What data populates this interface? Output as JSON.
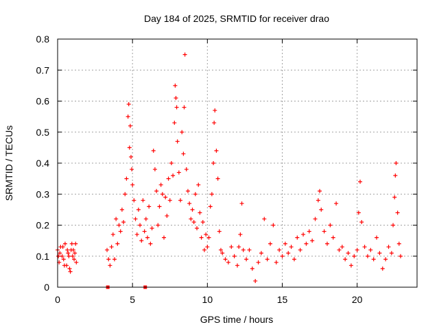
{
  "chart_data": {
    "type": "scatter",
    "title": "Day 184 of 2025, SRMTID for receiver drao",
    "xlabel": "GPS time / hours",
    "ylabel": "SRMTID / TECUs",
    "xlim": [
      0,
      24
    ],
    "ylim": [
      0,
      0.8
    ],
    "xticks": [
      "0",
      "5",
      "10",
      "15",
      "20"
    ],
    "yticks": [
      "0",
      "0.1",
      "0.2",
      "0.3",
      "0.4",
      "0.5",
      "0.6",
      "0.7",
      "0.8"
    ],
    "grid": true,
    "color": "#ff0000",
    "series": [
      {
        "name": "SRMTID",
        "marker": "plus",
        "points": [
          [
            0.0,
            0.12
          ],
          [
            0.1,
            0.08
          ],
          [
            0.2,
            0.13
          ],
          [
            0.3,
            0.1
          ],
          [
            0.4,
            0.09
          ],
          [
            0.5,
            0.14
          ],
          [
            0.6,
            0.07
          ],
          [
            0.7,
            0.11
          ],
          [
            0.8,
            0.06
          ],
          [
            0.9,
            0.12
          ],
          [
            1.0,
            0.1
          ],
          [
            1.1,
            0.09
          ],
          [
            1.2,
            0.14
          ],
          [
            1.25,
            0.08
          ],
          [
            0.05,
            0.1
          ],
          [
            0.15,
            0.11
          ],
          [
            0.35,
            0.13
          ],
          [
            0.45,
            0.07
          ],
          [
            0.65,
            0.12
          ],
          [
            0.75,
            0.1
          ],
          [
            0.85,
            0.05
          ],
          [
            0.95,
            0.14
          ],
          [
            1.05,
            0.12
          ],
          [
            1.15,
            0.11
          ],
          [
            3.3,
            0.12
          ],
          [
            3.4,
            0.09
          ],
          [
            3.5,
            0.07
          ],
          [
            3.6,
            0.13
          ],
          [
            3.7,
            0.17
          ],
          [
            3.8,
            0.09
          ],
          [
            3.9,
            0.22
          ],
          [
            4.0,
            0.14
          ],
          [
            4.1,
            0.2
          ],
          [
            4.2,
            0.18
          ],
          [
            4.3,
            0.25
          ],
          [
            4.4,
            0.21
          ],
          [
            4.5,
            0.3
          ],
          [
            4.6,
            0.35
          ],
          [
            4.7,
            0.55
          ],
          [
            4.75,
            0.59
          ],
          [
            4.8,
            0.45
          ],
          [
            4.85,
            0.52
          ],
          [
            4.9,
            0.42
          ],
          [
            4.95,
            0.38
          ],
          [
            5.0,
            0.33
          ],
          [
            5.1,
            0.28
          ],
          [
            5.2,
            0.22
          ],
          [
            5.3,
            0.17
          ],
          [
            5.4,
            0.25
          ],
          [
            5.5,
            0.2
          ],
          [
            5.6,
            0.15
          ],
          [
            5.7,
            0.28
          ],
          [
            5.8,
            0.18
          ],
          [
            5.9,
            0.22
          ],
          [
            6.0,
            0.16
          ],
          [
            6.1,
            0.26
          ],
          [
            6.2,
            0.14
          ],
          [
            6.3,
            0.19
          ],
          [
            6.4,
            0.44
          ],
          [
            6.5,
            0.38
          ],
          [
            6.6,
            0.31
          ],
          [
            6.7,
            0.2
          ],
          [
            6.8,
            0.26
          ],
          [
            6.9,
            0.33
          ],
          [
            7.0,
            0.3
          ],
          [
            7.1,
            0.16
          ],
          [
            7.2,
            0.29
          ],
          [
            7.3,
            0.23
          ],
          [
            7.4,
            0.35
          ],
          [
            7.5,
            0.28
          ],
          [
            7.6,
            0.4
          ],
          [
            7.7,
            0.36
          ],
          [
            7.8,
            0.53
          ],
          [
            7.85,
            0.65
          ],
          [
            7.9,
            0.61
          ],
          [
            7.95,
            0.58
          ],
          [
            8.0,
            0.47
          ],
          [
            8.1,
            0.37
          ],
          [
            8.2,
            0.28
          ],
          [
            8.3,
            0.5
          ],
          [
            8.4,
            0.43
          ],
          [
            8.45,
            0.58
          ],
          [
            8.5,
            0.75
          ],
          [
            8.6,
            0.38
          ],
          [
            8.7,
            0.31
          ],
          [
            8.8,
            0.27
          ],
          [
            8.9,
            0.22
          ],
          [
            9.0,
            0.25
          ],
          [
            9.1,
            0.21
          ],
          [
            9.2,
            0.3
          ],
          [
            9.3,
            0.19
          ],
          [
            9.4,
            0.33
          ],
          [
            9.5,
            0.24
          ],
          [
            9.6,
            0.16
          ],
          [
            9.7,
            0.21
          ],
          [
            9.8,
            0.12
          ],
          [
            9.9,
            0.17
          ],
          [
            10.0,
            0.13
          ],
          [
            10.1,
            0.16
          ],
          [
            10.2,
            0.26
          ],
          [
            10.3,
            0.3
          ],
          [
            10.4,
            0.4
          ],
          [
            10.45,
            0.53
          ],
          [
            10.5,
            0.57
          ],
          [
            10.6,
            0.44
          ],
          [
            10.7,
            0.35
          ],
          [
            10.8,
            0.18
          ],
          [
            10.9,
            0.12
          ],
          [
            11.0,
            0.11
          ],
          [
            11.2,
            0.09
          ],
          [
            11.4,
            0.08
          ],
          [
            11.6,
            0.13
          ],
          [
            11.8,
            0.1
          ],
          [
            12.0,
            0.07
          ],
          [
            12.1,
            0.13
          ],
          [
            12.2,
            0.17
          ],
          [
            12.3,
            0.27
          ],
          [
            12.4,
            0.12
          ],
          [
            12.6,
            0.09
          ],
          [
            12.8,
            0.12
          ],
          [
            13.0,
            0.06
          ],
          [
            13.2,
            0.02
          ],
          [
            13.4,
            0.08
          ],
          [
            13.6,
            0.11
          ],
          [
            13.8,
            0.22
          ],
          [
            14.0,
            0.09
          ],
          [
            14.2,
            0.14
          ],
          [
            14.4,
            0.2
          ],
          [
            14.6,
            0.08
          ],
          [
            14.8,
            0.12
          ],
          [
            15.0,
            0.1
          ],
          [
            15.2,
            0.14
          ],
          [
            15.4,
            0.11
          ],
          [
            15.6,
            0.13
          ],
          [
            15.8,
            0.09
          ],
          [
            16.0,
            0.16
          ],
          [
            16.2,
            0.12
          ],
          [
            16.4,
            0.17
          ],
          [
            16.6,
            0.14
          ],
          [
            16.8,
            0.18
          ],
          [
            17.0,
            0.15
          ],
          [
            17.2,
            0.22
          ],
          [
            17.4,
            0.28
          ],
          [
            17.5,
            0.31
          ],
          [
            17.6,
            0.25
          ],
          [
            17.8,
            0.18
          ],
          [
            18.0,
            0.14
          ],
          [
            18.2,
            0.2
          ],
          [
            18.4,
            0.16
          ],
          [
            18.6,
            0.27
          ],
          [
            18.8,
            0.12
          ],
          [
            19.0,
            0.13
          ],
          [
            19.2,
            0.09
          ],
          [
            19.4,
            0.11
          ],
          [
            19.6,
            0.07
          ],
          [
            19.8,
            0.1
          ],
          [
            20.0,
            0.12
          ],
          [
            20.1,
            0.24
          ],
          [
            20.2,
            0.34
          ],
          [
            20.3,
            0.21
          ],
          [
            20.5,
            0.13
          ],
          [
            20.7,
            0.1
          ],
          [
            20.9,
            0.12
          ],
          [
            21.1,
            0.09
          ],
          [
            21.3,
            0.16
          ],
          [
            21.5,
            0.11
          ],
          [
            21.7,
            0.06
          ],
          [
            21.9,
            0.09
          ],
          [
            22.1,
            0.13
          ],
          [
            22.3,
            0.11
          ],
          [
            22.4,
            0.2
          ],
          [
            22.5,
            0.29
          ],
          [
            22.55,
            0.36
          ],
          [
            22.6,
            0.4
          ],
          [
            22.7,
            0.24
          ],
          [
            22.8,
            0.14
          ],
          [
            22.9,
            0.1
          ],
          [
            3.35,
            0.0
          ],
          [
            5.85,
            0.0
          ]
        ]
      }
    ]
  }
}
